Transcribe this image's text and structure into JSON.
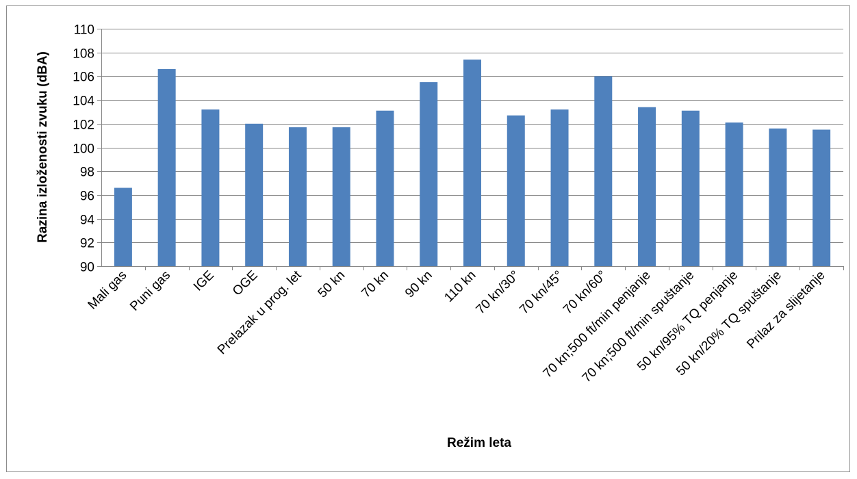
{
  "chart_data": {
    "type": "bar",
    "title": "",
    "xlabel": "Režim leta",
    "ylabel": "Razina izloženosti zvuku (dBA)",
    "ylim": [
      90,
      110
    ],
    "yticks": [
      90,
      92,
      94,
      96,
      98,
      100,
      102,
      104,
      106,
      108,
      110
    ],
    "grid": true,
    "legend": "none",
    "bar_color": "#4F81BD",
    "categories": [
      "Mali gas",
      "Puni gas",
      "IGE",
      "OGE",
      "Prelazak u prog. let",
      "50 kn",
      "70 kn",
      "90 kn",
      "110 kn",
      "70 kn/30°",
      "70 kn/45°",
      "70 kn/60°",
      "70 kn;500 ft/min penjanje",
      "70 kn;500 ft/min spuštanje",
      "50 kn/95% TQ penjanje",
      "50 kn/20% TQ spuštanje",
      "Prilaz za slijetanje"
    ],
    "values": [
      96.6,
      106.6,
      103.2,
      102.0,
      101.7,
      101.7,
      103.1,
      105.5,
      107.4,
      102.7,
      103.2,
      106.0,
      103.4,
      103.1,
      102.1,
      101.6,
      101.5
    ]
  }
}
